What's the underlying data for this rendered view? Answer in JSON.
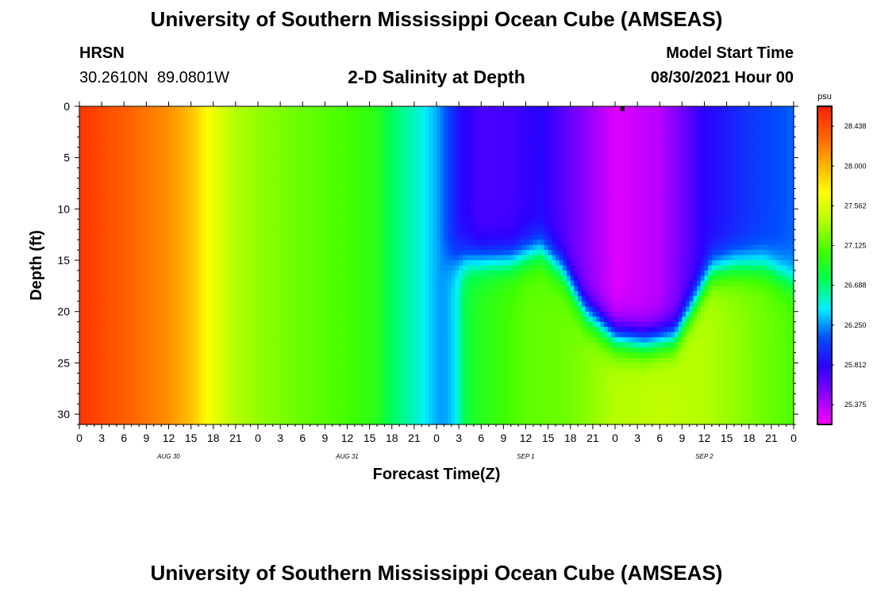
{
  "header": {
    "title": "University of Southern Mississippi Ocean Cube (AMSEAS)",
    "station": "HRSN",
    "coordinates": "30.2610N  89.0801W",
    "subtitle": "2-D Salinity at Depth",
    "model_start_label": "Model Start Time",
    "model_start_value": "08/30/2021 Hour 00"
  },
  "footer": {
    "title": "University of Southern Mississippi Ocean Cube (AMSEAS)"
  },
  "chart_data": {
    "type": "heatmap",
    "title": "2-D Salinity at Depth",
    "xlabel": "Forecast Time(Z)",
    "ylabel": "Depth (ft)",
    "units": "psu",
    "xlim": [
      0,
      96
    ],
    "ylim": [
      31,
      0
    ],
    "x_tick_labels": [
      "0",
      "3",
      "6",
      "9",
      "12",
      "15",
      "18",
      "21",
      "0",
      "3",
      "6",
      "9",
      "12",
      "15",
      "18",
      "21",
      "0",
      "3",
      "6",
      "9",
      "12",
      "15",
      "18",
      "21",
      "0",
      "3",
      "6",
      "9",
      "12",
      "15",
      "18",
      "21",
      "0"
    ],
    "date_labels": [
      {
        "label": "AUG 30",
        "hour": 12
      },
      {
        "label": "AUG 31",
        "hour": 36
      },
      {
        "label": "SEP 1",
        "hour": 60
      },
      {
        "label": "SEP 2",
        "hour": 84
      }
    ],
    "y_ticks": [
      0,
      5,
      10,
      15,
      20,
      25,
      30
    ],
    "colorbar": {
      "label": "psu",
      "vmin": 25.157,
      "vmax": 28.657,
      "ticks": [
        "28.438",
        "28.000",
        "27.562",
        "27.125",
        "26.688",
        "26.250",
        "25.812",
        "25.375"
      ],
      "colors": [
        "#ff00ff",
        "#8f00ff",
        "#2c00ff",
        "#0050ff",
        "#00f0ff",
        "#00ff50",
        "#40ff00",
        "#b0ff00",
        "#ffff00",
        "#ffb000",
        "#ff6000",
        "#ff2000"
      ]
    },
    "surface_salinity_by_hour": [
      {
        "hour": 0,
        "value": 28.55
      },
      {
        "hour": 6,
        "value": 28.35
      },
      {
        "hour": 12,
        "value": 28.15
      },
      {
        "hour": 15,
        "value": 27.95
      },
      {
        "hour": 18,
        "value": 27.62
      },
      {
        "hour": 21,
        "value": 27.4
      },
      {
        "hour": 24,
        "value": 27.3
      },
      {
        "hour": 30,
        "value": 27.18
      },
      {
        "hour": 36,
        "value": 27.08
      },
      {
        "hour": 40,
        "value": 26.95
      },
      {
        "hour": 42,
        "value": 26.72
      },
      {
        "hour": 45,
        "value": 26.55
      },
      {
        "hour": 48,
        "value": 26.3
      },
      {
        "hour": 51,
        "value": 25.85
      },
      {
        "hour": 54,
        "value": 25.7
      },
      {
        "hour": 58,
        "value": 25.72
      },
      {
        "hour": 62,
        "value": 25.82
      },
      {
        "hour": 66,
        "value": 25.6
      },
      {
        "hour": 72,
        "value": 25.25
      },
      {
        "hour": 78,
        "value": 25.35
      },
      {
        "hour": 84,
        "value": 25.8
      },
      {
        "hour": 90,
        "value": 26.0
      },
      {
        "hour": 96,
        "value": 26.15
      }
    ],
    "halocline_depth_ft_by_hour": [
      {
        "hour": 48,
        "value": 15
      },
      {
        "hour": 54,
        "value": 15
      },
      {
        "hour": 58,
        "value": 15
      },
      {
        "hour": 62,
        "value": 14
      },
      {
        "hour": 65,
        "value": 16
      },
      {
        "hour": 68,
        "value": 20
      },
      {
        "hour": 72,
        "value": 22.5
      },
      {
        "hour": 76,
        "value": 23
      },
      {
        "hour": 80,
        "value": 22.5
      },
      {
        "hour": 82,
        "value": 20
      },
      {
        "hour": 85,
        "value": 16
      },
      {
        "hour": 88,
        "value": 15.5
      },
      {
        "hour": 92,
        "value": 15.5
      },
      {
        "hour": 96,
        "value": 17
      }
    ],
    "bottom_salinity_by_hour": [
      {
        "hour": 48,
        "value": 26.6
      },
      {
        "hour": 54,
        "value": 26.95
      },
      {
        "hour": 60,
        "value": 27.15
      },
      {
        "hour": 66,
        "value": 27.2
      },
      {
        "hour": 72,
        "value": 27.4
      },
      {
        "hour": 78,
        "value": 27.45
      },
      {
        "hour": 84,
        "value": 27.4
      },
      {
        "hour": 90,
        "value": 27.25
      },
      {
        "hour": 96,
        "value": 27.1
      }
    ],
    "marker": {
      "hour": 73,
      "depth": 0
    }
  }
}
